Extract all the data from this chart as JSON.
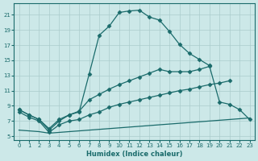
{
  "xlabel": "Humidex (Indice chaleur)",
  "background_color": "#cce8e8",
  "line_color": "#1a6b6b",
  "grid_color": "#aacccc",
  "xlim": [
    -0.5,
    23.5
  ],
  "ylim": [
    4.5,
    22.5
  ],
  "yticks": [
    5,
    7,
    9,
    11,
    13,
    15,
    17,
    19,
    21
  ],
  "xticks": [
    0,
    1,
    2,
    3,
    4,
    5,
    6,
    7,
    8,
    9,
    10,
    11,
    12,
    13,
    14,
    15,
    16,
    17,
    18,
    19,
    20,
    21,
    22,
    23
  ],
  "series": [
    {
      "x": [
        0,
        1,
        2,
        3,
        4,
        5,
        6,
        7,
        8,
        9,
        10,
        11,
        12,
        13,
        14,
        15,
        16,
        17,
        18,
        19
      ],
      "y": [
        8.5,
        7.8,
        7.2,
        6.0,
        7.2,
        7.8,
        8.2,
        13.2,
        18.3,
        19.5,
        21.3,
        21.5,
        21.6,
        20.7,
        20.3,
        18.8,
        17.1,
        15.9,
        15.1,
        14.3
      ],
      "style": "solid",
      "marker": "D",
      "markersize": 2.5
    },
    {
      "x": [
        0,
        1,
        2,
        3,
        4,
        5,
        6,
        7,
        8,
        9,
        10,
        11,
        12,
        13,
        14,
        15,
        16,
        17,
        18,
        19,
        20,
        21,
        22,
        23
      ],
      "y": [
        8.5,
        7.8,
        7.2,
        5.8,
        7.0,
        7.8,
        8.3,
        9.8,
        10.5,
        11.2,
        11.8,
        12.3,
        12.8,
        13.3,
        13.8,
        13.5,
        13.5,
        13.5,
        13.8,
        14.2,
        9.5,
        9.2,
        8.5,
        7.2
      ],
      "style": "solid",
      "marker": "D",
      "markersize": 2.5
    },
    {
      "x": [
        0,
        1,
        2,
        3,
        4,
        5,
        6,
        7,
        8,
        9,
        10,
        11,
        12,
        13,
        14,
        15,
        16,
        17,
        18,
        19,
        20,
        21,
        22,
        23
      ],
      "y": [
        8.2,
        7.5,
        7.0,
        5.5,
        6.5,
        7.0,
        7.2,
        7.8,
        8.2,
        8.8,
        9.2,
        9.5,
        9.8,
        10.1,
        10.4,
        10.7,
        11.0,
        11.2,
        11.5,
        11.8,
        12.0,
        12.3,
        null,
        null
      ],
      "style": "solid",
      "marker": "D",
      "markersize": 2.5
    },
    {
      "x": [
        0,
        1,
        2,
        3,
        4,
        5,
        6,
        7,
        8,
        9,
        10,
        11,
        12,
        13,
        14,
        15,
        16,
        17,
        18,
        19,
        20,
        21,
        22,
        23
      ],
      "y": [
        5.8,
        5.7,
        5.6,
        5.4,
        5.5,
        5.6,
        5.7,
        5.8,
        5.9,
        6.0,
        6.1,
        6.2,
        6.3,
        6.4,
        6.5,
        6.6,
        6.7,
        6.8,
        6.9,
        7.0,
        7.1,
        7.2,
        7.3,
        7.4
      ],
      "style": "solid",
      "marker": null,
      "markersize": 0
    }
  ]
}
